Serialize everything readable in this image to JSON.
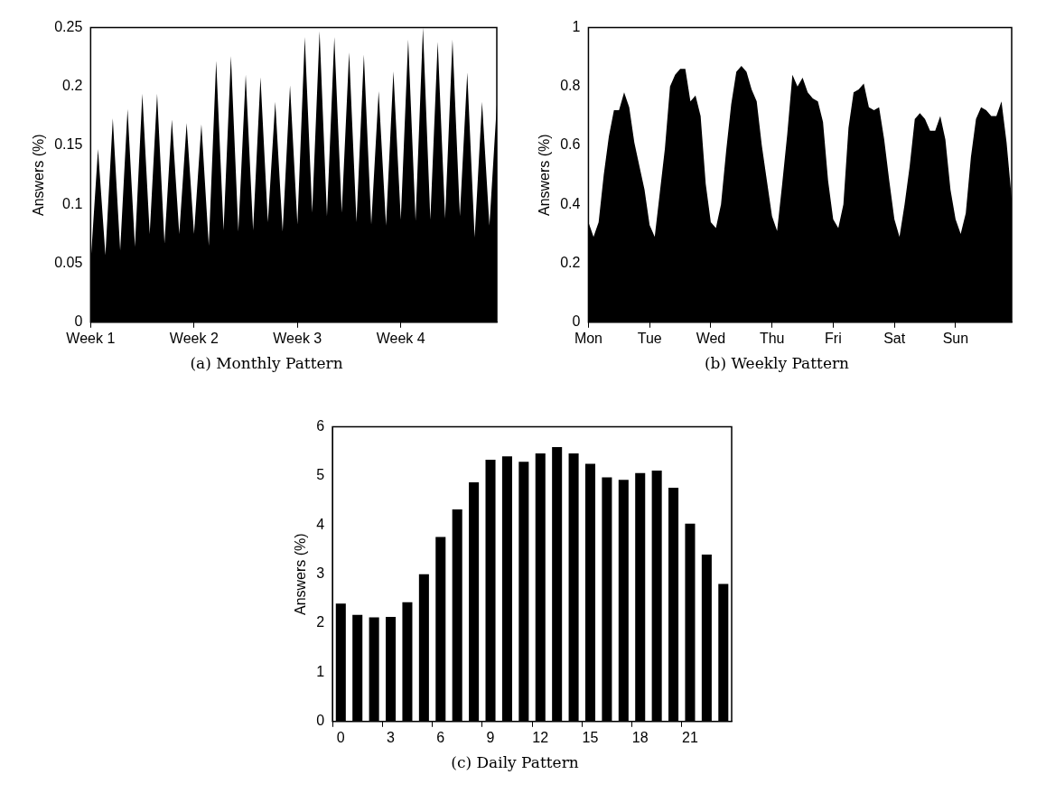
{
  "chart_data": [
    {
      "type": "area",
      "title": "(a) Monthly Pattern",
      "ylabel": "Answers (%)",
      "categories": [
        "Week 1",
        null,
        null,
        null,
        null,
        null,
        null,
        null,
        null,
        null,
        null,
        null,
        null,
        null,
        "Week 2",
        null,
        null,
        null,
        null,
        null,
        null,
        null,
        null,
        null,
        null,
        null,
        null,
        null,
        "Week 3",
        null,
        null,
        null,
        null,
        null,
        null,
        null,
        null,
        null,
        null,
        null,
        null,
        null,
        "Week 4",
        null,
        null,
        null,
        null,
        null,
        null,
        null,
        null,
        null,
        null,
        null,
        null,
        null
      ],
      "series": [
        {
          "color": "#000000",
          "values": [
            0.05,
            0.147,
            0.057,
            0.173,
            0.061,
            0.181,
            0.064,
            0.194,
            0.075,
            0.194,
            0.067,
            0.172,
            0.075,
            0.169,
            0.075,
            0.168,
            0.065,
            0.222,
            0.078,
            0.226,
            0.077,
            0.21,
            0.078,
            0.208,
            0.085,
            0.187,
            0.077,
            0.201,
            0.083,
            0.242,
            0.093,
            0.247,
            0.09,
            0.242,
            0.093,
            0.229,
            0.085,
            0.227,
            0.083,
            0.196,
            0.082,
            0.213,
            0.087,
            0.24,
            0.086,
            0.25,
            0.087,
            0.238,
            0.088,
            0.24,
            0.09,
            0.212,
            0.072,
            0.187,
            0.082,
            0.185
          ]
        }
      ],
      "ylim": [
        0,
        0.25
      ],
      "yticks": [
        0,
        0.05,
        0.1,
        0.15,
        0.2,
        0.25
      ],
      "legend": false
    },
    {
      "type": "area",
      "title": "(b) Weekly Pattern",
      "ylabel": "Answers (%)",
      "categories": [
        "Mon",
        null,
        null,
        null,
        null,
        null,
        null,
        null,
        null,
        null,
        null,
        null,
        "Tue",
        null,
        null,
        null,
        null,
        null,
        null,
        null,
        null,
        null,
        null,
        null,
        "Wed",
        null,
        null,
        null,
        null,
        null,
        null,
        null,
        null,
        null,
        null,
        null,
        "Thu",
        null,
        null,
        null,
        null,
        null,
        null,
        null,
        null,
        null,
        null,
        null,
        "Fri",
        null,
        null,
        null,
        null,
        null,
        null,
        null,
        null,
        null,
        null,
        null,
        "Sat",
        null,
        null,
        null,
        null,
        null,
        null,
        null,
        null,
        null,
        null,
        null,
        "Sun",
        null,
        null,
        null,
        null,
        null,
        null,
        null,
        null,
        null,
        null,
        null
      ],
      "series": [
        {
          "color": "#000000",
          "values": [
            0.34,
            0.29,
            0.34,
            0.5,
            0.63,
            0.72,
            0.72,
            0.78,
            0.73,
            0.61,
            0.53,
            0.45,
            0.33,
            0.29,
            0.44,
            0.59,
            0.8,
            0.84,
            0.86,
            0.86,
            0.75,
            0.77,
            0.7,
            0.47,
            0.34,
            0.32,
            0.4,
            0.58,
            0.74,
            0.85,
            0.87,
            0.85,
            0.79,
            0.75,
            0.6,
            0.48,
            0.36,
            0.31,
            0.47,
            0.64,
            0.84,
            0.8,
            0.83,
            0.78,
            0.76,
            0.75,
            0.68,
            0.48,
            0.35,
            0.32,
            0.4,
            0.66,
            0.78,
            0.79,
            0.81,
            0.73,
            0.72,
            0.73,
            0.62,
            0.48,
            0.35,
            0.29,
            0.4,
            0.53,
            0.69,
            0.71,
            0.69,
            0.65,
            0.65,
            0.7,
            0.62,
            0.45,
            0.35,
            0.3,
            0.37,
            0.56,
            0.69,
            0.73,
            0.72,
            0.7,
            0.7,
            0.75,
            0.61,
            0.42
          ]
        }
      ],
      "ylim": [
        0,
        1
      ],
      "yticks": [
        0,
        0.2,
        0.4,
        0.6,
        0.8,
        1
      ],
      "legend": false
    },
    {
      "type": "bar",
      "title": "(c) Daily Pattern",
      "ylabel": "Answers (%)",
      "categories": [
        "0",
        null,
        null,
        "3",
        null,
        null,
        "6",
        null,
        null,
        "9",
        null,
        null,
        "12",
        null,
        null,
        "15",
        null,
        null,
        "18",
        null,
        null,
        "21",
        null,
        null
      ],
      "series": [
        {
          "color": "#000000",
          "values": [
            2.4,
            2.17,
            2.12,
            2.13,
            2.43,
            3.0,
            3.76,
            4.32,
            4.87,
            5.33,
            5.4,
            5.29,
            5.46,
            5.59,
            5.46,
            5.25,
            4.97,
            4.92,
            5.06,
            5.11,
            4.76,
            4.03,
            3.4,
            2.8
          ]
        }
      ],
      "ylim": [
        0,
        6
      ],
      "yticks": [
        0,
        1,
        2,
        3,
        4,
        5,
        6
      ],
      "legend": false
    }
  ]
}
